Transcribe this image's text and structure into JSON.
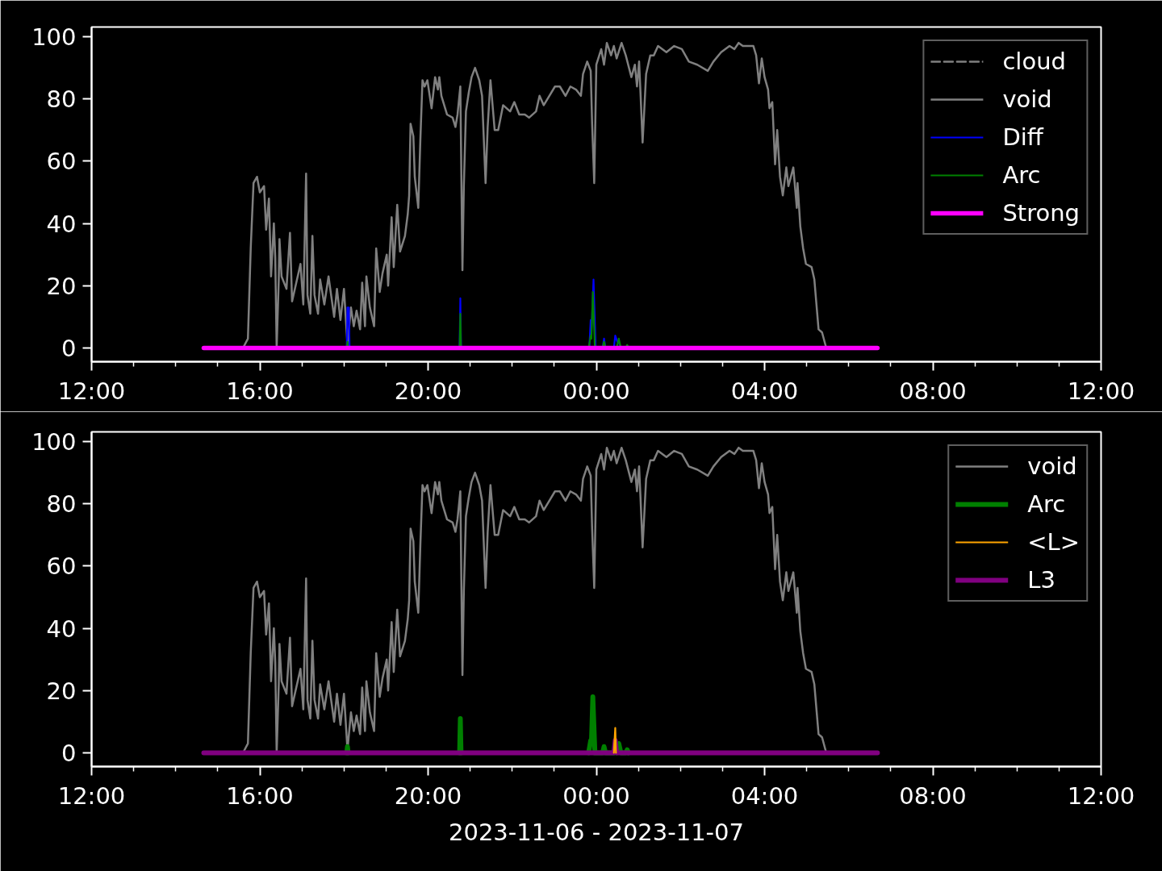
{
  "chart_data": [
    {
      "type": "line",
      "xlim": [
        "2023-11-06T12:00",
        "2023-11-07T12:00"
      ],
      "xticks": [
        {
          "value": "2023-11-06T12:00",
          "label": "12:00"
        },
        {
          "value": "2023-11-06T13:00",
          "label": null
        },
        {
          "value": "2023-11-06T14:00",
          "label": null
        },
        {
          "value": "2023-11-06T15:00",
          "label": null
        },
        {
          "value": "2023-11-06T16:00",
          "label": "16:00"
        },
        {
          "value": "2023-11-06T17:00",
          "label": null
        },
        {
          "value": "2023-11-06T18:00",
          "label": null
        },
        {
          "value": "2023-11-06T19:00",
          "label": null
        },
        {
          "value": "2023-11-06T20:00",
          "label": "20:00"
        },
        {
          "value": "2023-11-06T21:00",
          "label": null
        },
        {
          "value": "2023-11-06T22:00",
          "label": null
        },
        {
          "value": "2023-11-06T23:00",
          "label": null
        },
        {
          "value": "2023-11-07T00:00",
          "label": "00:00"
        },
        {
          "value": "2023-11-07T01:00",
          "label": null
        },
        {
          "value": "2023-11-07T02:00",
          "label": null
        },
        {
          "value": "2023-11-07T03:00",
          "label": null
        },
        {
          "value": "2023-11-07T04:00",
          "label": "04:00"
        },
        {
          "value": "2023-11-07T05:00",
          "label": null
        },
        {
          "value": "2023-11-07T06:00",
          "label": null
        },
        {
          "value": "2023-11-07T07:00",
          "label": null
        },
        {
          "value": "2023-11-07T08:00",
          "label": "08:00"
        },
        {
          "value": "2023-11-07T09:00",
          "label": null
        },
        {
          "value": "2023-11-07T10:00",
          "label": null
        },
        {
          "value": "2023-11-07T11:00",
          "label": null
        },
        {
          "value": "2023-11-07T12:00",
          "label": "12:00"
        }
      ],
      "ylim": [
        -4.4,
        103.1
      ],
      "yticks": [
        0,
        20,
        40,
        60,
        80,
        100
      ],
      "legend": "top right",
      "series": [
        {
          "name": "cloud",
          "color": "#808080",
          "line_style": "dashed"
        },
        {
          "name": "void",
          "color": "#808080",
          "x": [
            "2023-11-06T15:36",
            "2023-11-06T15:43",
            "2023-11-06T15:47",
            "2023-11-06T15:51",
            "2023-11-06T15:56",
            "2023-11-06T16:00",
            "2023-11-06T16:06",
            "2023-11-06T16:09",
            "2023-11-06T16:13",
            "2023-11-06T16:16",
            "2023-11-06T16:20",
            "2023-11-06T16:22",
            "2023-11-06T16:24",
            "2023-11-06T16:27",
            "2023-11-06T16:28",
            "2023-11-06T16:31",
            "2023-11-06T16:38",
            "2023-11-06T16:43",
            "2023-11-06T16:46",
            "2023-11-06T16:52",
            "2023-11-06T16:58",
            "2023-11-06T17:02",
            "2023-11-06T17:06",
            "2023-11-06T17:08",
            "2023-11-06T17:12",
            "2023-11-06T17:15",
            "2023-11-06T17:18",
            "2023-11-06T17:23",
            "2023-11-06T17:26",
            "2023-11-06T17:32",
            "2023-11-06T17:38",
            "2023-11-06T17:46",
            "2023-11-06T17:50",
            "2023-11-06T17:55",
            "2023-11-06T18:00",
            "2023-11-06T18:05",
            "2023-11-06T18:10",
            "2023-11-06T18:14",
            "2023-11-06T18:18",
            "2023-11-06T18:23",
            "2023-11-06T18:26",
            "2023-11-06T18:30",
            "2023-11-06T18:32",
            "2023-11-06T18:37",
            "2023-11-06T18:43",
            "2023-11-06T18:46",
            "2023-11-06T18:51",
            "2023-11-06T18:55",
            "2023-11-06T19:01",
            "2023-11-06T19:03",
            "2023-11-06T19:08",
            "2023-11-06T19:11",
            "2023-11-06T19:16",
            "2023-11-06T19:20",
            "2023-11-06T19:27",
            "2023-11-06T19:31",
            "2023-11-06T19:33",
            "2023-11-06T19:35",
            "2023-11-06T19:39",
            "2023-11-06T19:41",
            "2023-11-06T19:46",
            "2023-11-06T19:49",
            "2023-11-06T19:52",
            "2023-11-06T19:55",
            "2023-11-06T19:59",
            "2023-11-06T20:05",
            "2023-11-06T20:10",
            "2023-11-06T20:14",
            "2023-11-06T20:16",
            "2023-11-06T20:19",
            "2023-11-06T20:27",
            "2023-11-06T20:35",
            "2023-11-06T20:39",
            "2023-11-06T20:42",
            "2023-11-06T20:46",
            "2023-11-06T20:49",
            "2023-11-06T20:51",
            "2023-11-06T20:54",
            "2023-11-06T20:58",
            "2023-11-06T21:02",
            "2023-11-06T21:07",
            "2023-11-06T21:13",
            "2023-11-06T21:17",
            "2023-11-06T21:22",
            "2023-11-06T21:25",
            "2023-11-06T21:29",
            "2023-11-06T21:35",
            "2023-11-06T21:40",
            "2023-11-06T21:47",
            "2023-11-06T21:57",
            "2023-11-06T22:03",
            "2023-11-06T22:10",
            "2023-11-06T22:18",
            "2023-11-06T22:24",
            "2023-11-06T22:34",
            "2023-11-06T22:39",
            "2023-11-06T22:45",
            "2023-11-06T22:53",
            "2023-11-06T23:01",
            "2023-11-06T23:08",
            "2023-11-06T23:16",
            "2023-11-06T23:23",
            "2023-11-06T23:31",
            "2023-11-06T23:38",
            "2023-11-06T23:41",
            "2023-11-06T23:47",
            "2023-11-06T23:52",
            "2023-11-06T23:54",
            "2023-11-06T23:57",
            "2023-11-07T00:00",
            "2023-11-07T00:07",
            "2023-11-07T00:11",
            "2023-11-07T00:15",
            "2023-11-07T00:21",
            "2023-11-07T00:25",
            "2023-11-07T00:29",
            "2023-11-07T00:36",
            "2023-11-07T00:42",
            "2023-11-07T00:50",
            "2023-11-07T00:55",
            "2023-11-07T00:58",
            "2023-11-07T01:01",
            "2023-11-07T01:03",
            "2023-11-07T01:06",
            "2023-11-07T01:11",
            "2023-11-07T01:17",
            "2023-11-07T01:22",
            "2023-11-07T01:28",
            "2023-11-07T01:40",
            "2023-11-07T01:51",
            "2023-11-07T02:02",
            "2023-11-07T02:12",
            "2023-11-07T02:24",
            "2023-11-07T02:39",
            "2023-11-07T02:47",
            "2023-11-07T02:58",
            "2023-11-07T03:10",
            "2023-11-07T03:17",
            "2023-11-07T03:23",
            "2023-11-07T03:29",
            "2023-11-07T03:37",
            "2023-11-07T03:44",
            "2023-11-07T03:48",
            "2023-11-07T03:52",
            "2023-11-07T03:56",
            "2023-11-07T04:00",
            "2023-11-07T04:05",
            "2023-11-07T04:07",
            "2023-11-07T04:11",
            "2023-11-07T04:15",
            "2023-11-07T04:18",
            "2023-11-07T04:22",
            "2023-11-07T04:26",
            "2023-11-07T04:31",
            "2023-11-07T04:34",
            "2023-11-07T04:41",
            "2023-11-07T04:46",
            "2023-11-07T04:47",
            "2023-11-07T04:51",
            "2023-11-07T04:55",
            "2023-11-07T04:59",
            "2023-11-07T05:07",
            "2023-11-07T05:11",
            "2023-11-07T05:17",
            "2023-11-07T05:22",
            "2023-11-07T05:28"
          ],
          "values": [
            0,
            3,
            32,
            53,
            55,
            50,
            52,
            38,
            48,
            23,
            40,
            29,
            0,
            22,
            35,
            23,
            19,
            37,
            15,
            21,
            27,
            14,
            56,
            17,
            11,
            36,
            17,
            11,
            22,
            14,
            23,
            10,
            19,
            9,
            19,
            1,
            13,
            7,
            12,
            6,
            21,
            7,
            23,
            13,
            7,
            32,
            18,
            24,
            30,
            20,
            42,
            26,
            46,
            31,
            36,
            43,
            49,
            72,
            68,
            55,
            45,
            67,
            86,
            84,
            86,
            77,
            87,
            83,
            87,
            81,
            75,
            74,
            71,
            75,
            84,
            25,
            52,
            76,
            82,
            87,
            90,
            86,
            81,
            53,
            71,
            86,
            70,
            70,
            78,
            76,
            79,
            75,
            75,
            74,
            76,
            81,
            78,
            81,
            84,
            84,
            81,
            84,
            83,
            81,
            88,
            92,
            89,
            72,
            53,
            91,
            96,
            91,
            98,
            94,
            97,
            93,
            98,
            94,
            87,
            91,
            84,
            92,
            82,
            66,
            88,
            94,
            94,
            97,
            95,
            97,
            96,
            92,
            91,
            89,
            92,
            95,
            97,
            96,
            98,
            97,
            97,
            97,
            94,
            85,
            93,
            87,
            83,
            77,
            79,
            59,
            70,
            55,
            49,
            58,
            52,
            58,
            45,
            53,
            39,
            32,
            27,
            26,
            22,
            6,
            5,
            0
          ]
        },
        {
          "name": "Diff",
          "color": "#0000ff",
          "x": [
            "2023-11-06T18:04",
            "2023-11-06T18:05",
            "2023-11-06T18:07",
            "2023-11-06T18:08",
            "2023-11-06T19:00",
            "2023-11-06T20:45",
            "2023-11-06T20:46",
            "2023-11-06T20:47",
            "2023-11-06T22:00",
            "2023-11-06T23:50",
            "2023-11-06T23:52",
            "2023-11-06T23:53",
            "2023-11-06T23:56",
            "2023-11-06T23:59",
            "2023-11-07T00:09",
            "2023-11-07T00:11",
            "2023-11-07T00:13",
            "2023-11-07T00:25",
            "2023-11-07T00:27",
            "2023-11-07T00:30",
            "2023-11-07T00:32",
            "2023-11-07T00:35"
          ],
          "values": [
            0,
            13,
            13,
            0,
            null,
            0,
            16,
            0,
            null,
            0,
            9,
            5,
            22,
            0,
            0,
            3,
            0,
            0,
            4,
            2,
            2,
            0
          ]
        },
        {
          "name": "Arc",
          "color": "#008000",
          "x": [
            "2023-11-06T18:04",
            "2023-11-06T18:05",
            "2023-11-06T18:06",
            "2023-11-06T19:00",
            "2023-11-06T20:45",
            "2023-11-06T20:46",
            "2023-11-06T20:47",
            "2023-11-06T22:00",
            "2023-11-06T23:49",
            "2023-11-06T23:52",
            "2023-11-06T23:53",
            "2023-11-06T23:55",
            "2023-11-06T23:58",
            "2023-11-07T00:09",
            "2023-11-07T00:11",
            "2023-11-07T00:13",
            "2023-11-07T00:29",
            "2023-11-07T00:32",
            "2023-11-07T00:35",
            "2023-11-07T00:42",
            "2023-11-07T00:44",
            "2023-11-07T00:46"
          ],
          "values": [
            0,
            2,
            0,
            null,
            0,
            11,
            0,
            null,
            0,
            4,
            3,
            18,
            0,
            0,
            2,
            0,
            0,
            3,
            0,
            0,
            1,
            0
          ]
        },
        {
          "name": "Strong",
          "color": "#ff00ff",
          "x": [
            "2023-11-06T14:40",
            "2023-11-07T06:41"
          ],
          "values": [
            0,
            0
          ]
        }
      ]
    },
    {
      "type": "line",
      "xlabel": "2023-11-06 - 2023-11-07",
      "xlim": [
        "2023-11-06T12:00",
        "2023-11-07T12:00"
      ],
      "xticks": [
        {
          "value": "2023-11-06T12:00",
          "label": "12:00"
        },
        {
          "value": "2023-11-06T13:00",
          "label": null
        },
        {
          "value": "2023-11-06T14:00",
          "label": null
        },
        {
          "value": "2023-11-06T15:00",
          "label": null
        },
        {
          "value": "2023-11-06T16:00",
          "label": "16:00"
        },
        {
          "value": "2023-11-06T17:00",
          "label": null
        },
        {
          "value": "2023-11-06T18:00",
          "label": null
        },
        {
          "value": "2023-11-06T19:00",
          "label": null
        },
        {
          "value": "2023-11-06T20:00",
          "label": "20:00"
        },
        {
          "value": "2023-11-06T21:00",
          "label": null
        },
        {
          "value": "2023-11-06T22:00",
          "label": null
        },
        {
          "value": "2023-11-06T23:00",
          "label": null
        },
        {
          "value": "2023-11-07T00:00",
          "label": "00:00"
        },
        {
          "value": "2023-11-07T01:00",
          "label": null
        },
        {
          "value": "2023-11-07T02:00",
          "label": null
        },
        {
          "value": "2023-11-07T03:00",
          "label": null
        },
        {
          "value": "2023-11-07T04:00",
          "label": "04:00"
        },
        {
          "value": "2023-11-07T05:00",
          "label": null
        },
        {
          "value": "2023-11-07T06:00",
          "label": null
        },
        {
          "value": "2023-11-07T07:00",
          "label": null
        },
        {
          "value": "2023-11-07T08:00",
          "label": "08:00"
        },
        {
          "value": "2023-11-07T09:00",
          "label": null
        },
        {
          "value": "2023-11-07T10:00",
          "label": null
        },
        {
          "value": "2023-11-07T11:00",
          "label": null
        },
        {
          "value": "2023-11-07T12:00",
          "label": "12:00"
        }
      ],
      "ylim": [
        -4.4,
        103.1
      ],
      "yticks": [
        0,
        20,
        40,
        60,
        80,
        100
      ],
      "legend": "top right",
      "series": [
        {
          "name": "void",
          "color": "#808080",
          "x": [
            "2023-11-06T15:36",
            "2023-11-06T15:43",
            "2023-11-06T15:47",
            "2023-11-06T15:51",
            "2023-11-06T15:56",
            "2023-11-06T16:00",
            "2023-11-06T16:06",
            "2023-11-06T16:09",
            "2023-11-06T16:13",
            "2023-11-06T16:16",
            "2023-11-06T16:20",
            "2023-11-06T16:22",
            "2023-11-06T16:24",
            "2023-11-06T16:27",
            "2023-11-06T16:28",
            "2023-11-06T16:31",
            "2023-11-06T16:38",
            "2023-11-06T16:43",
            "2023-11-06T16:46",
            "2023-11-06T16:52",
            "2023-11-06T16:58",
            "2023-11-06T17:02",
            "2023-11-06T17:06",
            "2023-11-06T17:08",
            "2023-11-06T17:12",
            "2023-11-06T17:15",
            "2023-11-06T17:18",
            "2023-11-06T17:23",
            "2023-11-06T17:26",
            "2023-11-06T17:32",
            "2023-11-06T17:38",
            "2023-11-06T17:46",
            "2023-11-06T17:50",
            "2023-11-06T17:55",
            "2023-11-06T18:00",
            "2023-11-06T18:05",
            "2023-11-06T18:10",
            "2023-11-06T18:14",
            "2023-11-06T18:18",
            "2023-11-06T18:23",
            "2023-11-06T18:26",
            "2023-11-06T18:30",
            "2023-11-06T18:32",
            "2023-11-06T18:37",
            "2023-11-06T18:43",
            "2023-11-06T18:46",
            "2023-11-06T18:51",
            "2023-11-06T18:55",
            "2023-11-06T19:01",
            "2023-11-06T19:03",
            "2023-11-06T19:08",
            "2023-11-06T19:11",
            "2023-11-06T19:16",
            "2023-11-06T19:20",
            "2023-11-06T19:27",
            "2023-11-06T19:31",
            "2023-11-06T19:33",
            "2023-11-06T19:35",
            "2023-11-06T19:39",
            "2023-11-06T19:41",
            "2023-11-06T19:46",
            "2023-11-06T19:49",
            "2023-11-06T19:52",
            "2023-11-06T19:55",
            "2023-11-06T19:59",
            "2023-11-06T20:05",
            "2023-11-06T20:10",
            "2023-11-06T20:14",
            "2023-11-06T20:16",
            "2023-11-06T20:19",
            "2023-11-06T20:27",
            "2023-11-06T20:35",
            "2023-11-06T20:39",
            "2023-11-06T20:42",
            "2023-11-06T20:46",
            "2023-11-06T20:49",
            "2023-11-06T20:51",
            "2023-11-06T20:54",
            "2023-11-06T20:58",
            "2023-11-06T21:02",
            "2023-11-06T21:07",
            "2023-11-06T21:13",
            "2023-11-06T21:17",
            "2023-11-06T21:22",
            "2023-11-06T21:25",
            "2023-11-06T21:29",
            "2023-11-06T21:35",
            "2023-11-06T21:40",
            "2023-11-06T21:47",
            "2023-11-06T21:57",
            "2023-11-06T22:03",
            "2023-11-06T22:10",
            "2023-11-06T22:18",
            "2023-11-06T22:24",
            "2023-11-06T22:34",
            "2023-11-06T22:39",
            "2023-11-06T22:45",
            "2023-11-06T22:53",
            "2023-11-06T23:01",
            "2023-11-06T23:08",
            "2023-11-06T23:16",
            "2023-11-06T23:23",
            "2023-11-06T23:31",
            "2023-11-06T23:38",
            "2023-11-06T23:41",
            "2023-11-06T23:47",
            "2023-11-06T23:52",
            "2023-11-06T23:54",
            "2023-11-06T23:57",
            "2023-11-07T00:00",
            "2023-11-07T00:07",
            "2023-11-07T00:11",
            "2023-11-07T00:15",
            "2023-11-07T00:21",
            "2023-11-07T00:25",
            "2023-11-07T00:29",
            "2023-11-07T00:36",
            "2023-11-07T00:42",
            "2023-11-07T00:50",
            "2023-11-07T00:55",
            "2023-11-07T00:58",
            "2023-11-07T01:01",
            "2023-11-07T01:03",
            "2023-11-07T01:06",
            "2023-11-07T01:11",
            "2023-11-07T01:17",
            "2023-11-07T01:22",
            "2023-11-07T01:28",
            "2023-11-07T01:40",
            "2023-11-07T01:51",
            "2023-11-07T02:02",
            "2023-11-07T02:12",
            "2023-11-07T02:24",
            "2023-11-07T02:39",
            "2023-11-07T02:47",
            "2023-11-07T02:58",
            "2023-11-07T03:10",
            "2023-11-07T03:17",
            "2023-11-07T03:23",
            "2023-11-07T03:29",
            "2023-11-07T03:37",
            "2023-11-07T03:44",
            "2023-11-07T03:48",
            "2023-11-07T03:52",
            "2023-11-07T03:56",
            "2023-11-07T04:00",
            "2023-11-07T04:05",
            "2023-11-07T04:07",
            "2023-11-07T04:11",
            "2023-11-07T04:15",
            "2023-11-07T04:18",
            "2023-11-07T04:22",
            "2023-11-07T04:26",
            "2023-11-07T04:31",
            "2023-11-07T04:34",
            "2023-11-07T04:41",
            "2023-11-07T04:46",
            "2023-11-07T04:47",
            "2023-11-07T04:51",
            "2023-11-07T04:55",
            "2023-11-07T04:59",
            "2023-11-07T05:07",
            "2023-11-07T05:11",
            "2023-11-07T05:17",
            "2023-11-07T05:22",
            "2023-11-07T05:28"
          ],
          "values": [
            0,
            3,
            32,
            53,
            55,
            50,
            52,
            38,
            48,
            23,
            40,
            29,
            0,
            22,
            35,
            23,
            19,
            37,
            15,
            21,
            27,
            14,
            56,
            17,
            11,
            36,
            17,
            11,
            22,
            14,
            23,
            10,
            19,
            9,
            19,
            1,
            13,
            7,
            12,
            6,
            21,
            7,
            23,
            13,
            7,
            32,
            18,
            24,
            30,
            20,
            42,
            26,
            46,
            31,
            36,
            43,
            49,
            72,
            68,
            55,
            45,
            67,
            86,
            84,
            86,
            77,
            87,
            83,
            87,
            81,
            75,
            74,
            71,
            75,
            84,
            25,
            52,
            76,
            82,
            87,
            90,
            86,
            81,
            53,
            71,
            86,
            70,
            70,
            78,
            76,
            79,
            75,
            75,
            74,
            76,
            81,
            78,
            81,
            84,
            84,
            81,
            84,
            83,
            81,
            88,
            92,
            89,
            72,
            53,
            91,
            96,
            91,
            98,
            94,
            97,
            93,
            98,
            94,
            87,
            91,
            84,
            92,
            82,
            66,
            88,
            94,
            94,
            97,
            95,
            97,
            96,
            92,
            91,
            89,
            92,
            95,
            97,
            96,
            98,
            97,
            97,
            97,
            94,
            85,
            93,
            87,
            83,
            77,
            79,
            59,
            70,
            55,
            49,
            58,
            52,
            58,
            45,
            53,
            39,
            32,
            27,
            26,
            22,
            6,
            5,
            0
          ]
        },
        {
          "name": "Arc",
          "color": "#008000",
          "x": [
            "2023-11-06T18:04",
            "2023-11-06T18:05",
            "2023-11-06T18:06",
            "2023-11-06T19:00",
            "2023-11-06T20:45",
            "2023-11-06T20:46",
            "2023-11-06T20:47",
            "2023-11-06T22:00",
            "2023-11-06T23:49",
            "2023-11-06T23:52",
            "2023-11-06T23:53",
            "2023-11-06T23:55",
            "2023-11-06T23:58",
            "2023-11-07T00:09",
            "2023-11-07T00:11",
            "2023-11-07T00:13",
            "2023-11-07T00:29",
            "2023-11-07T00:32",
            "2023-11-07T00:35",
            "2023-11-07T00:42",
            "2023-11-07T00:44",
            "2023-11-07T00:46"
          ],
          "values": [
            0,
            2,
            0,
            null,
            0,
            11,
            0,
            null,
            0,
            4,
            3,
            18,
            0,
            0,
            2,
            0,
            0,
            3,
            0,
            0,
            1,
            0
          ]
        },
        {
          "name": "<L>",
          "color": "#ffa500",
          "x": [
            "2023-11-07T00:25",
            "2023-11-07T00:27",
            "2023-11-07T00:28"
          ],
          "values": [
            0,
            8,
            0
          ]
        },
        {
          "name": "L3",
          "color": "#800080",
          "x": [
            "2023-11-06T14:40",
            "2023-11-07T00:25",
            "2023-11-07T00:27",
            "2023-11-07T00:29",
            "2023-11-07T06:41"
          ],
          "values": [
            0,
            0,
            4,
            0,
            0
          ]
        }
      ]
    }
  ]
}
